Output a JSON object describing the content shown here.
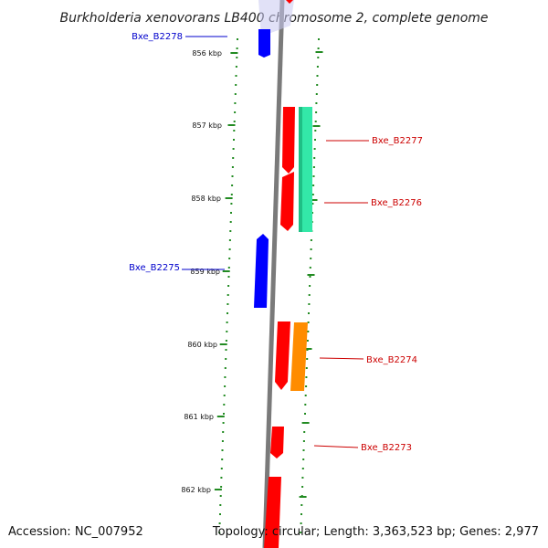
{
  "title": "Burkholderia xenovorans LB400 chromosome 2, complete genome",
  "footer": {
    "accession": "Accession: NC_007952",
    "summary": "Topology: circular; Length: 3,363,523 bp; Genes: 2,977"
  },
  "ticks": [
    "856 kbp",
    "857 kbp",
    "858 kbp",
    "859 kbp",
    "860 kbp",
    "861 kbp",
    "862 kbp"
  ],
  "genes": [
    {
      "label": "Bxe_B2278",
      "color": "#0000cc"
    },
    {
      "label": "Bxe_B2277",
      "color": "#cc0000"
    },
    {
      "label": "Bxe_B2276",
      "color": "#cc0000"
    },
    {
      "label": "Bxe_B2275",
      "color": "#0000cc"
    },
    {
      "label": "Bxe_B2274",
      "color": "#cc0000"
    },
    {
      "label": "Bxe_B2273",
      "color": "#cc0000"
    }
  ],
  "colors": {
    "backbone": "#7a7a7a",
    "tick_marks": "#228b22",
    "forward_cds": "#ff0000",
    "reverse_cds": "#0000ff",
    "cds_green": "#33e8a8",
    "cds_orange": "#ff8c00"
  }
}
